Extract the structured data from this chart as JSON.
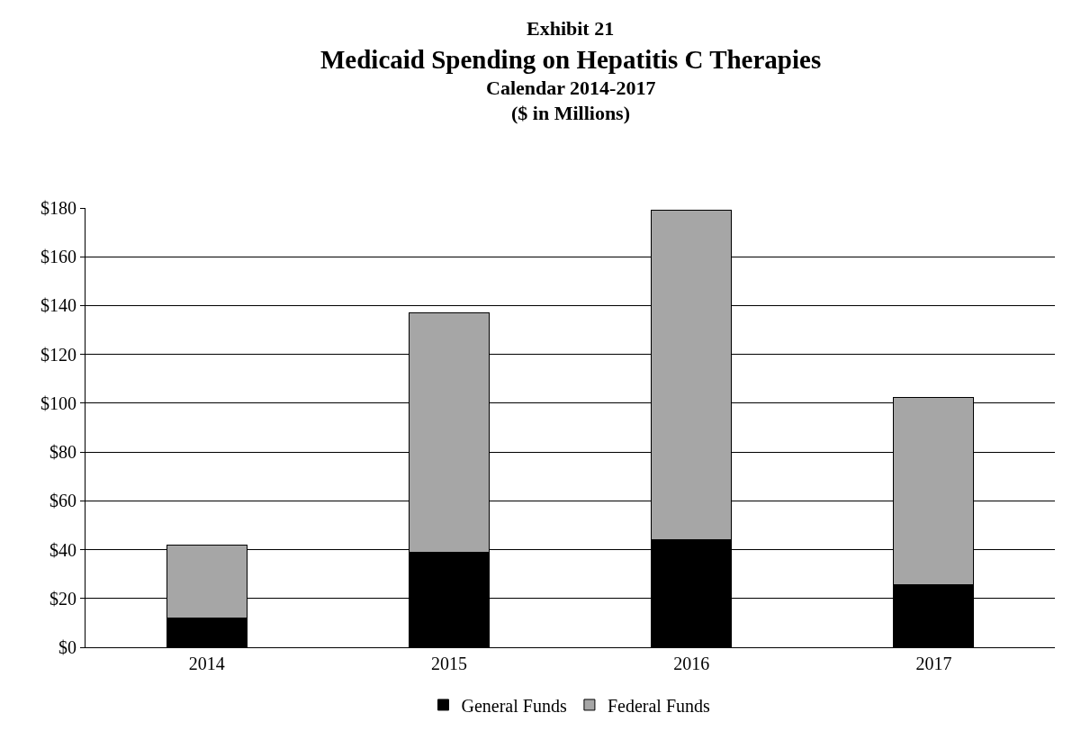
{
  "chart_data": {
    "type": "bar",
    "stacked": true,
    "title": "Exhibit 21\nMedicaid Spending on Hepatitis C Therapies",
    "subtitle": "Calendar 2014-2017\n($ in Millions)",
    "categories": [
      "2014",
      "2015",
      "2016",
      "2017"
    ],
    "series": [
      {
        "name": "General Funds",
        "color": "#000000",
        "values": [
          12,
          39,
          44,
          25.5
        ]
      },
      {
        "name": "Federal Funds",
        "color": "#a6a6a6",
        "values": [
          30,
          98,
          135,
          77
        ]
      }
    ],
    "ylim": [
      0,
      180
    ],
    "yticks": [
      {
        "value": 0,
        "label": "$0"
      },
      {
        "value": 20,
        "label": "$20"
      },
      {
        "value": 40,
        "label": "$40"
      },
      {
        "value": 60,
        "label": "$60"
      },
      {
        "value": 80,
        "label": "$80"
      },
      {
        "value": 100,
        "label": "$100"
      },
      {
        "value": 120,
        "label": "$120"
      },
      {
        "value": 140,
        "label": "$140"
      },
      {
        "value": 160,
        "label": "$160"
      },
      {
        "value": 180,
        "label": "$180"
      }
    ],
    "grid": "y",
    "legend": "bottom"
  }
}
